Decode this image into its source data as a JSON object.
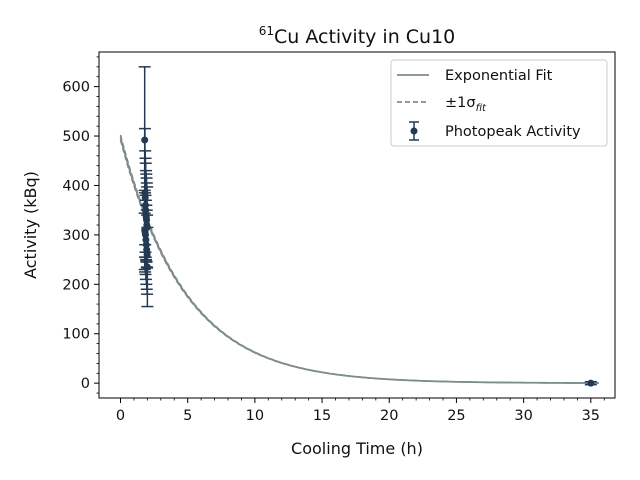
{
  "chart_data": {
    "type": "scatter",
    "title_super": "61",
    "title_main": "Cu Activity in Cu10",
    "xlabel": "Cooling Time (h)",
    "ylabel": "Activity (kBq)",
    "xlim": [
      -1.6,
      36.8
    ],
    "ylim": [
      -30,
      670
    ],
    "x_ticks": [
      0,
      5,
      10,
      15,
      20,
      25,
      30,
      35
    ],
    "y_ticks": [
      0,
      100,
      200,
      300,
      400,
      500,
      600
    ],
    "grid": false,
    "legend_position": "upper right",
    "legend": {
      "fit_label": "Exponential Fit",
      "band_label_prefix": "±1σ",
      "band_label_sub": "fit",
      "points_label": "Photopeak Activity"
    },
    "fit": {
      "model": "A0 * exp(-lambda * t)",
      "A0": 497,
      "lambda": 0.208,
      "t_range": [
        0,
        35.6
      ],
      "band_fraction": 0.01
    },
    "series": [
      {
        "name": "Photopeak Activity",
        "x": [
          1.8,
          1.82,
          1.84,
          1.86,
          1.88,
          1.9,
          1.92,
          1.94,
          1.96,
          1.98,
          1.8,
          1.83,
          1.86,
          1.89,
          1.92,
          1.95,
          1.98,
          2.0,
          35.0
        ],
        "y": [
          492,
          385,
          375,
          360,
          350,
          340,
          335,
          330,
          320,
          315,
          310,
          305,
          300,
          290,
          280,
          270,
          260,
          235,
          0
        ],
        "yerr": [
          148,
          130,
          95,
          95,
          95,
          90,
          88,
          85,
          85,
          82,
          80,
          80,
          80,
          80,
          80,
          80,
          80,
          80,
          3
        ]
      }
    ],
    "colors": {
      "fit_line": "#7f8c8d",
      "band_line": "#6c7a7b",
      "points": "#243a52",
      "axes": "#000000",
      "legend_border": "#cccccc"
    }
  }
}
